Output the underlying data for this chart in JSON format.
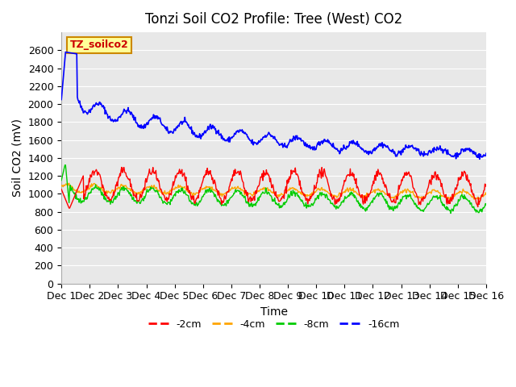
{
  "title": "Tonzi Soil CO2 Profile: Tree (West) CO2",
  "xlabel": "Time",
  "ylabel": "Soil CO2 (mV)",
  "background_color": "#e8e8e8",
  "plot_bg_color": "#e8e8e8",
  "ylim": [
    0,
    2800
  ],
  "yticks": [
    0,
    200,
    400,
    600,
    800,
    1000,
    1200,
    1400,
    1600,
    1800,
    2000,
    2200,
    2400,
    2600
  ],
  "xtick_labels": [
    "Dec 1",
    "Dec 2",
    "Dec 3",
    "Dec 4",
    "Dec 5",
    "Dec 6",
    "Dec 7",
    "Dec 8",
    "Dec 9",
    "Dec 10",
    "Dec 11",
    "Dec 12",
    "Dec 13",
    "Dec 14",
    "Dec 15",
    "Dec 16"
  ],
  "n_days": 15,
  "points_per_day": 48,
  "legend_labels": [
    "-2cm",
    "-4cm",
    "-8cm",
    "-16cm"
  ],
  "legend_colors": [
    "#ff0000",
    "#ffa500",
    "#00cc00",
    "#0000ff"
  ],
  "dataset_label": "TZ_soilco2",
  "label_bg": "#ffff99",
  "label_border": "#cc8800",
  "title_fontsize": 12,
  "axis_label_fontsize": 10,
  "tick_fontsize": 9
}
